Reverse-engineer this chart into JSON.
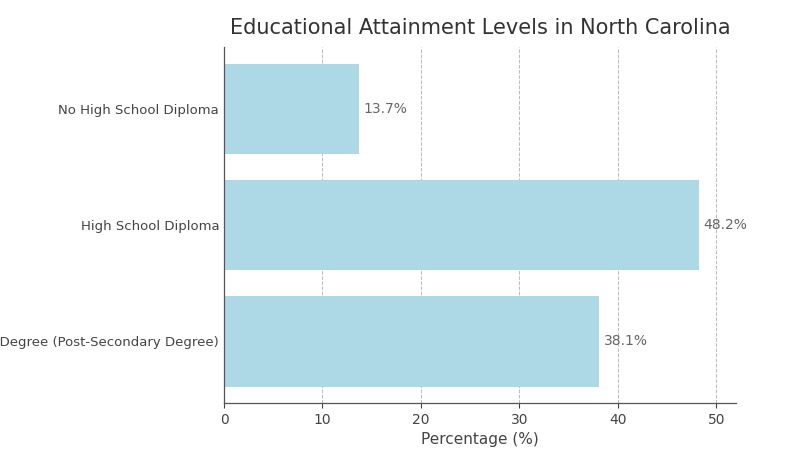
{
  "title": "Educational Attainment Levels in North Carolina",
  "categories": [
    "No High School Diploma",
    "High School Diploma",
    "Higher Degree (Post-Secondary Degree)"
  ],
  "values": [
    13.7,
    48.2,
    38.1
  ],
  "bar_color": "#add8e6",
  "xlabel": "Percentage (%)",
  "xlim": [
    0,
    52
  ],
  "xticks": [
    0,
    10,
    20,
    30,
    40,
    50
  ],
  "title_fontsize": 15,
  "label_fontsize": 11,
  "tick_fontsize": 10,
  "value_label_color": "#666666",
  "ytick_color": "#444444",
  "grid_color": "#bbbbbb",
  "bar_height": 0.78,
  "spine_color": "#555555",
  "background_color": "#ffffff"
}
